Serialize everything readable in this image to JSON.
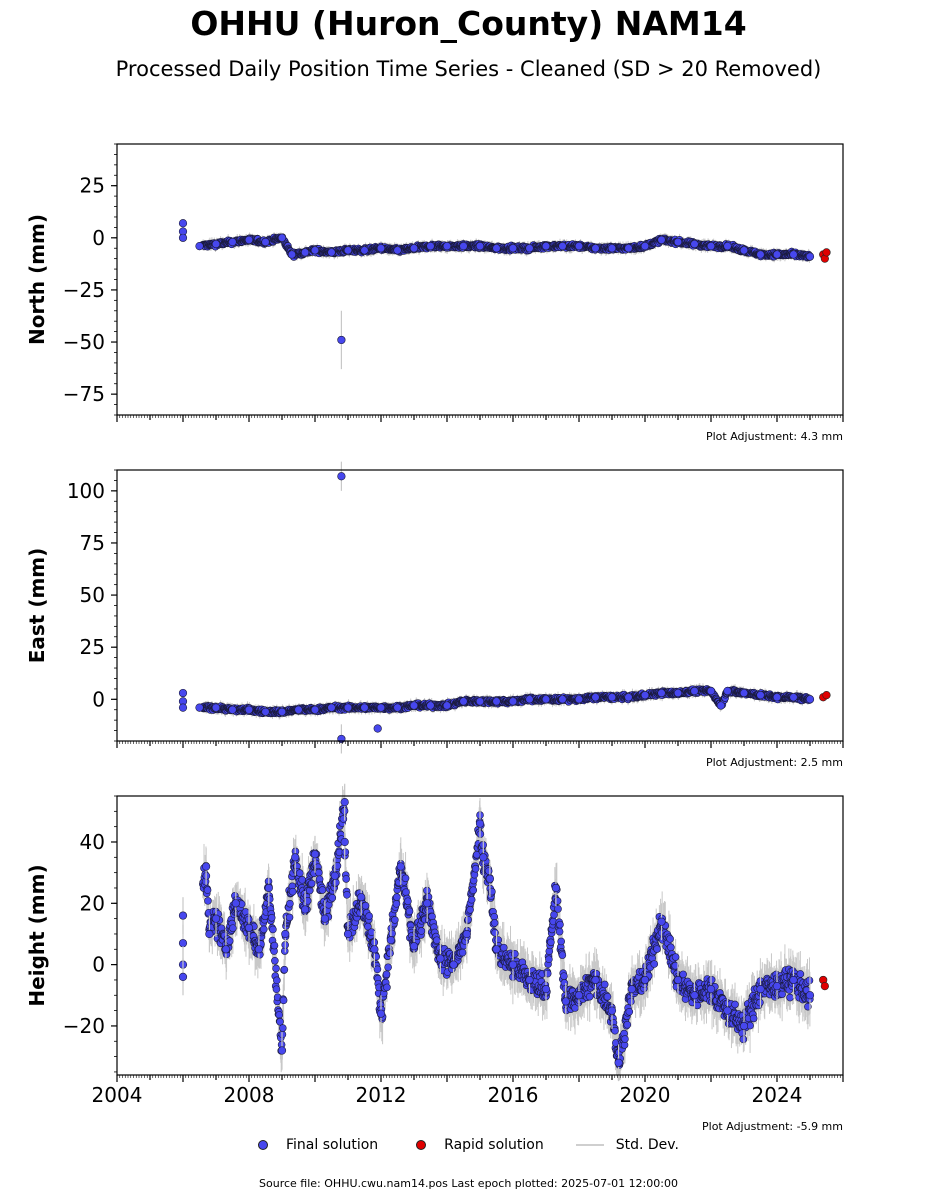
{
  "title": "OHHU (Huron_County) NAM14",
  "subtitle": "Processed Daily Position Time Series - Cleaned (SD > 20 Removed)",
  "legend": {
    "final": "Final solution",
    "rapid": "Rapid solution",
    "std": "Std. Dev."
  },
  "source": "Source file: OHHU.cwu.nam14.pos  Last epoch plotted: 2025-07-01 12:00:00",
  "colors": {
    "final": "#4747ee",
    "rapid": "#e00000",
    "std_dev": "#c8c8c8"
  },
  "chart_data": [
    {
      "type": "scatter",
      "ylabel": "North (mm)",
      "xlim": [
        2004,
        2026
      ],
      "ylim": [
        -85,
        45
      ],
      "yticks": [
        25,
        0,
        -25,
        -50,
        -75
      ],
      "note": "Plot Adjustment: 4.3 mm",
      "series": [
        {
          "name": "Final solution",
          "points": [
            [
              2006.0,
              7
            ],
            [
              2006.0,
              3
            ],
            [
              2006.0,
              0
            ],
            [
              2006.5,
              -4
            ],
            [
              2007.0,
              -3
            ],
            [
              2007.5,
              -2
            ],
            [
              2008.0,
              -1
            ],
            [
              2008.5,
              -2
            ],
            [
              2009.0,
              0
            ],
            [
              2009.3,
              -8
            ],
            [
              2009.7,
              -7
            ],
            [
              2010.0,
              -6
            ],
            [
              2010.5,
              -7
            ],
            [
              2010.8,
              -49
            ],
            [
              2011.0,
              -6
            ],
            [
              2011.5,
              -6
            ],
            [
              2012.0,
              -5
            ],
            [
              2012.5,
              -6
            ],
            [
              2013.0,
              -5
            ],
            [
              2013.5,
              -4
            ],
            [
              2014.0,
              -4
            ],
            [
              2014.5,
              -4
            ],
            [
              2015.0,
              -4
            ],
            [
              2015.5,
              -5
            ],
            [
              2016.0,
              -5
            ],
            [
              2016.5,
              -5
            ],
            [
              2017.0,
              -4
            ],
            [
              2017.5,
              -4
            ],
            [
              2018.0,
              -4
            ],
            [
              2018.5,
              -5
            ],
            [
              2019.0,
              -5
            ],
            [
              2019.5,
              -5
            ],
            [
              2020.0,
              -4
            ],
            [
              2020.5,
              -1
            ],
            [
              2021.0,
              -2
            ],
            [
              2021.5,
              -3
            ],
            [
              2022.0,
              -4
            ],
            [
              2022.5,
              -4
            ],
            [
              2023.0,
              -6
            ],
            [
              2023.5,
              -8
            ],
            [
              2024.0,
              -8
            ],
            [
              2024.5,
              -8
            ],
            [
              2025.0,
              -9
            ]
          ]
        },
        {
          "name": "Rapid solution",
          "points": [
            [
              2025.4,
              -8
            ],
            [
              2025.45,
              -10
            ],
            [
              2025.5,
              -7
            ]
          ]
        }
      ]
    },
    {
      "type": "scatter",
      "ylabel": "East (mm)",
      "xlim": [
        2004,
        2026
      ],
      "ylim": [
        -20,
        110
      ],
      "yticks": [
        100,
        75,
        50,
        25,
        0
      ],
      "note": "Plot Adjustment: 2.5 mm",
      "series": [
        {
          "name": "Final solution",
          "points": [
            [
              2006.0,
              3
            ],
            [
              2006.0,
              -1
            ],
            [
              2006.0,
              -4
            ],
            [
              2006.5,
              -4
            ],
            [
              2007.0,
              -4
            ],
            [
              2007.5,
              -5
            ],
            [
              2008.0,
              -5
            ],
            [
              2008.5,
              -6
            ],
            [
              2009.0,
              -6
            ],
            [
              2009.5,
              -5
            ],
            [
              2010.0,
              -5
            ],
            [
              2010.5,
              -4
            ],
            [
              2010.8,
              107
            ],
            [
              2010.8,
              -19
            ],
            [
              2011.0,
              -4
            ],
            [
              2011.5,
              -4
            ],
            [
              2011.9,
              -14
            ],
            [
              2012.0,
              -4
            ],
            [
              2012.5,
              -4
            ],
            [
              2013.0,
              -3
            ],
            [
              2013.5,
              -3
            ],
            [
              2014.0,
              -3
            ],
            [
              2014.5,
              -1
            ],
            [
              2015.0,
              -1
            ],
            [
              2015.5,
              -1
            ],
            [
              2016.0,
              -1
            ],
            [
              2016.5,
              0
            ],
            [
              2017.0,
              0
            ],
            [
              2017.5,
              0
            ],
            [
              2018.0,
              0
            ],
            [
              2018.5,
              1
            ],
            [
              2019.0,
              1
            ],
            [
              2019.5,
              1
            ],
            [
              2020.0,
              2
            ],
            [
              2020.5,
              3
            ],
            [
              2021.0,
              3
            ],
            [
              2021.5,
              4
            ],
            [
              2022.0,
              4
            ],
            [
              2022.3,
              -3
            ],
            [
              2022.5,
              4
            ],
            [
              2023.0,
              3
            ],
            [
              2023.5,
              2
            ],
            [
              2024.0,
              1
            ],
            [
              2024.5,
              1
            ],
            [
              2025.0,
              0
            ]
          ]
        },
        {
          "name": "Rapid solution",
          "points": [
            [
              2025.4,
              1
            ],
            [
              2025.5,
              2
            ]
          ]
        }
      ]
    },
    {
      "type": "scatter",
      "ylabel": "Height (mm)",
      "xlim": [
        2004,
        2026
      ],
      "ylim": [
        -36,
        55
      ],
      "yticks": [
        40,
        20,
        0,
        -20
      ],
      "xticks": [
        2004,
        2008,
        2012,
        2016,
        2020,
        2024
      ],
      "note": "Plot Adjustment: -5.9 mm",
      "series": [
        {
          "name": "Final solution",
          "points": [
            [
              2006.0,
              16
            ],
            [
              2006.0,
              7
            ],
            [
              2006.0,
              0
            ],
            [
              2006.0,
              -4
            ],
            [
              2006.7,
              32
            ],
            [
              2006.8,
              10
            ],
            [
              2007.0,
              15
            ],
            [
              2007.3,
              5
            ],
            [
              2007.6,
              20
            ],
            [
              2008.0,
              12
            ],
            [
              2008.3,
              5
            ],
            [
              2008.6,
              25
            ],
            [
              2009.0,
              -28
            ],
            [
              2009.1,
              10
            ],
            [
              2009.4,
              35
            ],
            [
              2009.7,
              18
            ],
            [
              2010.0,
              36
            ],
            [
              2010.3,
              15
            ],
            [
              2010.6,
              29
            ],
            [
              2010.9,
              53
            ],
            [
              2010.9,
              40
            ],
            [
              2011.0,
              10
            ],
            [
              2011.4,
              22
            ],
            [
              2011.8,
              5
            ],
            [
              2012.0,
              -16
            ],
            [
              2012.3,
              8
            ],
            [
              2012.6,
              32
            ],
            [
              2013.0,
              6
            ],
            [
              2013.4,
              20
            ],
            [
              2013.8,
              2
            ],
            [
              2014.2,
              0
            ],
            [
              2014.6,
              10
            ],
            [
              2015.0,
              46
            ],
            [
              2015.1,
              35
            ],
            [
              2015.3,
              28
            ],
            [
              2015.5,
              5
            ],
            [
              2016.0,
              0
            ],
            [
              2016.5,
              -5
            ],
            [
              2017.0,
              -8
            ],
            [
              2017.3,
              25
            ],
            [
              2017.6,
              -12
            ],
            [
              2018.0,
              -10
            ],
            [
              2018.5,
              -5
            ],
            [
              2019.0,
              -15
            ],
            [
              2019.2,
              -32
            ],
            [
              2019.6,
              -8
            ],
            [
              2020.0,
              -5
            ],
            [
              2020.5,
              14
            ],
            [
              2021.0,
              -5
            ],
            [
              2021.5,
              -10
            ],
            [
              2022.0,
              -8
            ],
            [
              2022.5,
              -15
            ],
            [
              2023.0,
              -20
            ],
            [
              2023.5,
              -8
            ],
            [
              2024.0,
              -7
            ],
            [
              2024.5,
              -5
            ],
            [
              2025.0,
              -10
            ]
          ]
        },
        {
          "name": "Rapid solution",
          "points": [
            [
              2025.4,
              -5
            ],
            [
              2025.45,
              -7
            ]
          ]
        }
      ]
    }
  ]
}
